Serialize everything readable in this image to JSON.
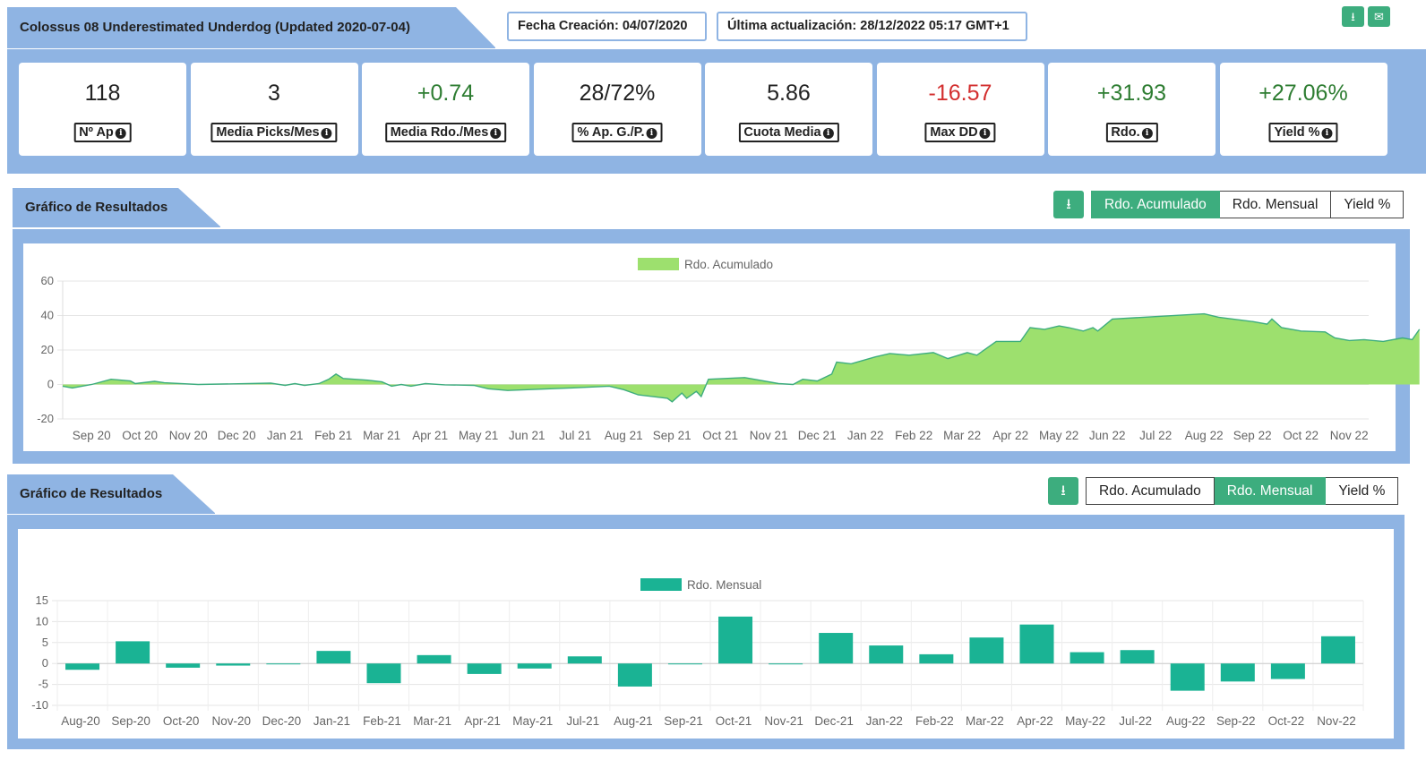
{
  "header": {
    "title": "Colossus 08 Underestimated Underdog (Updated 2020-07-04)",
    "created": "Fecha Creación: 04/07/2020",
    "updated": "Última actualización: 28/12/2022 05:17 GMT+1",
    "download_icon": "download-icon",
    "email_icon": "envelope-icon"
  },
  "stats": [
    {
      "value": "118",
      "label": "Nº Ap",
      "color": "#222222"
    },
    {
      "value": "3",
      "label": "Media Picks/Mes",
      "color": "#222222"
    },
    {
      "value": "+0.74",
      "label": "Media Rdo./Mes",
      "color": "#2e7d32"
    },
    {
      "value": "28/72%",
      "label": "% Ap. G./P.",
      "color": "#222222"
    },
    {
      "value": "5.86",
      "label": "Cuota Media",
      "color": "#222222"
    },
    {
      "value": "-16.57",
      "label": "Max DD",
      "color": "#d32f2f"
    },
    {
      "value": "+31.93",
      "label": "Rdo.",
      "color": "#2e7d32"
    },
    {
      "value": "+27.06%",
      "label": "Yield %",
      "color": "#2e7d32"
    }
  ],
  "section1": {
    "title": "Gráfico de Resultados",
    "buttons": [
      "Rdo. Acumulado",
      "Rdo. Mensual",
      "Yield %"
    ],
    "active": 0
  },
  "section2": {
    "title": "Gráfico de Resultados",
    "buttons": [
      "Rdo. Acumulado",
      "Rdo. Mensual",
      "Yield %"
    ],
    "active": 1
  },
  "colors": {
    "accent": "#3dad7e",
    "band": "#8fb4e3",
    "area_fill": "#9de06e",
    "area_line": "#3dad7e",
    "bar": "#1ab394"
  },
  "chart_data": [
    {
      "type": "area",
      "legend": "Rdo. Acumulado",
      "x_ticks": [
        "Sep 20",
        "Oct 20",
        "Nov 20",
        "Dec 20",
        "Jan 21",
        "Feb 21",
        "Mar 21",
        "Apr 21",
        "May 21",
        "Jun 21",
        "Jul 21",
        "Aug 21",
        "Sep 21",
        "Oct 21",
        "Nov 21",
        "Dec 21",
        "Jan 22",
        "Feb 22",
        "Mar 22",
        "Apr 22",
        "May 22",
        "Jun 22",
        "Jul 22",
        "Aug 22",
        "Sep 22",
        "Oct 22",
        "Nov 22"
      ],
      "y_ticks": [
        60,
        40,
        20,
        0,
        -20
      ],
      "ylim": [
        -20,
        60
      ],
      "x_range_months": [
        -0.3,
        26.7
      ],
      "points": [
        [
          -0.3,
          -1
        ],
        [
          -0.1,
          -2
        ],
        [
          0.3,
          0
        ],
        [
          0.7,
          3
        ],
        [
          1.1,
          2
        ],
        [
          1.2,
          0.5
        ],
        [
          1.6,
          1.8
        ],
        [
          1.8,
          1
        ],
        [
          2.5,
          0
        ],
        [
          4,
          0.8
        ],
        [
          4.3,
          -0.5
        ],
        [
          4.5,
          0.5
        ],
        [
          4.7,
          -0.5
        ],
        [
          5,
          0.5
        ],
        [
          5.2,
          3
        ],
        [
          5.35,
          6
        ],
        [
          5.5,
          3.5
        ],
        [
          6,
          2.5
        ],
        [
          6.3,
          1.5
        ],
        [
          6.5,
          -1
        ],
        [
          6.7,
          0
        ],
        [
          6.9,
          -1
        ],
        [
          7.2,
          0.5
        ],
        [
          7.6,
          -0.2
        ],
        [
          8.2,
          -0.5
        ],
        [
          8.5,
          -2.5
        ],
        [
          8.9,
          -3.5
        ],
        [
          10.2,
          -2
        ],
        [
          11,
          -1
        ],
        [
          11.3,
          -3
        ],
        [
          11.6,
          -6
        ],
        [
          12.2,
          -8
        ],
        [
          12.3,
          -10
        ],
        [
          12.5,
          -5
        ],
        [
          12.6,
          -8
        ],
        [
          12.8,
          -4
        ],
        [
          12.9,
          -7
        ],
        [
          13.05,
          3
        ],
        [
          13.8,
          4
        ],
        [
          14.5,
          0.5
        ],
        [
          14.8,
          0
        ],
        [
          15,
          3
        ],
        [
          15.3,
          2
        ],
        [
          15.6,
          6
        ],
        [
          15.7,
          13
        ],
        [
          16,
          12
        ],
        [
          16.5,
          16
        ],
        [
          16.8,
          18
        ],
        [
          17.2,
          17
        ],
        [
          17.7,
          18.5
        ],
        [
          18,
          15
        ],
        [
          18.4,
          18.5
        ],
        [
          18.6,
          17
        ],
        [
          19,
          25
        ],
        [
          19.5,
          25
        ],
        [
          19.7,
          33
        ],
        [
          20,
          32
        ],
        [
          20.3,
          34
        ],
        [
          20.5,
          33
        ],
        [
          20.8,
          31
        ],
        [
          21,
          33
        ],
        [
          21.1,
          31
        ],
        [
          21.4,
          38
        ],
        [
          23.3,
          41
        ],
        [
          23.6,
          39
        ],
        [
          24.3,
          36.5
        ],
        [
          24.6,
          35
        ],
        [
          24.7,
          38
        ],
        [
          24.9,
          33
        ],
        [
          25.3,
          31
        ],
        [
          25.8,
          30.5
        ],
        [
          26,
          27
        ],
        [
          26.3,
          25.5
        ],
        [
          26.6,
          26
        ],
        [
          27,
          25
        ],
        [
          27.4,
          27
        ],
        [
          27.6,
          26
        ],
        [
          27.75,
          32
        ]
      ]
    },
    {
      "type": "bar",
      "legend": "Rdo. Mensual",
      "categories": [
        "Aug-20",
        "Sep-20",
        "Oct-20",
        "Nov-20",
        "Dec-20",
        "Jan-21",
        "Feb-21",
        "Mar-21",
        "Apr-21",
        "May-21",
        "Jul-21",
        "Aug-21",
        "Sep-21",
        "Oct-21",
        "Nov-21",
        "Dec-21",
        "Jan-22",
        "Feb-22",
        "Mar-22",
        "Apr-22",
        "May-22",
        "Jul-22",
        "Aug-22",
        "Sep-22",
        "Oct-22",
        "Nov-22"
      ],
      "values": [
        -1.5,
        5.3,
        -1.0,
        -0.5,
        0,
        3.0,
        -4.7,
        2.0,
        -2.5,
        -1.2,
        1.7,
        -5.5,
        0,
        11.2,
        0,
        7.3,
        4.3,
        2.2,
        6.2,
        9.3,
        2.7,
        3.2,
        -6.5,
        -4.3,
        -3.7,
        6.5
      ],
      "y_ticks": [
        15,
        10,
        5,
        0,
        -5,
        -10
      ],
      "ylim": [
        -10,
        15
      ]
    }
  ]
}
